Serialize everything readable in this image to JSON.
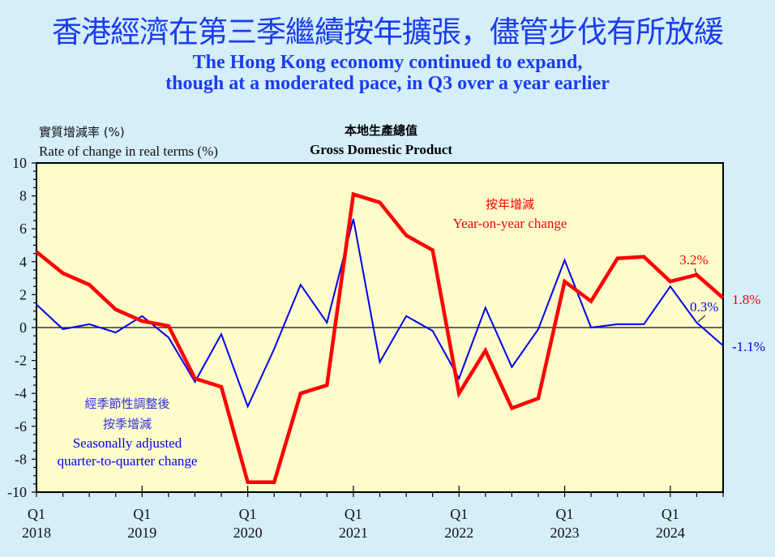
{
  "header": {
    "title_zh": "香港經濟在第三季繼續按年擴張，儘管步伐有所放緩",
    "title_en_line1": "The Hong Kong economy continued to expand,",
    "title_en_line2": "though at a moderated pace, in Q3 over a year earlier"
  },
  "axis": {
    "ylabel_zh": "實質增減率 (%)",
    "ylabel_en": "Rate of change in real terms (%)"
  },
  "chart_title": {
    "zh": "本地生產總值",
    "en": "Gross Domestic Product"
  },
  "legend": {
    "yoy_zh": "按年增減",
    "yoy_en": "Year-on-year change",
    "qoq_zh_1": "經季節性調整後",
    "qoq_zh_2": "按季增減",
    "qoq_en_1": "Seasonally adjusted",
    "qoq_en_2": "quarter-to-quarter change"
  },
  "annotations": {
    "yoy_q2_2024": "3.2%",
    "yoy_q3_2024": "1.8%",
    "qoq_q2_2024": "0.3%",
    "qoq_q3_2024": "-1.1%"
  },
  "colors": {
    "background": "#d4eefa",
    "plot_bg": "#fffccc",
    "yoy": "#ff0000",
    "qoq": "#0000ee",
    "title": "#1a3cf0"
  },
  "chart_data": {
    "type": "line",
    "title": "Gross Domestic Product",
    "title_zh": "本地生產總值",
    "ylabel": "Rate of change in real terms (%)",
    "xlabel": "",
    "ylim": [
      -10,
      10
    ],
    "yticks": [
      10,
      8,
      6,
      4,
      2,
      0,
      -2,
      -4,
      -6,
      -8,
      -10
    ],
    "xtick_labels": [
      {
        "q": "Q1",
        "year": "2018"
      },
      {
        "q": "Q1",
        "year": "2019"
      },
      {
        "q": "Q1",
        "year": "2020"
      },
      {
        "q": "Q1",
        "year": "2021"
      },
      {
        "q": "Q1",
        "year": "2022"
      },
      {
        "q": "Q1",
        "year": "2023"
      },
      {
        "q": "Q1",
        "year": "2024"
      }
    ],
    "categories": [
      "2018Q1",
      "2018Q2",
      "2018Q3",
      "2018Q4",
      "2019Q1",
      "2019Q2",
      "2019Q3",
      "2019Q4",
      "2020Q1",
      "2020Q2",
      "2020Q3",
      "2020Q4",
      "2021Q1",
      "2021Q2",
      "2021Q3",
      "2021Q4",
      "2022Q1",
      "2022Q2",
      "2022Q3",
      "2022Q4",
      "2023Q1",
      "2023Q2",
      "2023Q3",
      "2023Q4",
      "2024Q1",
      "2024Q2",
      "2024Q3"
    ],
    "series": [
      {
        "name": "Year-on-year change",
        "name_zh": "按年增減",
        "color": "#ff0000",
        "values": [
          4.6,
          3.3,
          2.6,
          1.1,
          0.4,
          0.1,
          -3.1,
          -3.6,
          -9.4,
          -9.4,
          -4.0,
          -3.5,
          8.1,
          7.6,
          5.6,
          4.7,
          -4.0,
          -1.4,
          -4.9,
          -4.3,
          2.8,
          1.6,
          4.2,
          4.3,
          2.8,
          3.2,
          1.8
        ]
      },
      {
        "name": "Seasonally adjusted quarter-to-quarter change",
        "name_zh": "經季節性調整後按季增減",
        "color": "#0000ee",
        "values": [
          1.4,
          -0.1,
          0.2,
          -0.3,
          0.7,
          -0.6,
          -3.3,
          -0.4,
          -4.8,
          -1.3,
          2.6,
          0.3,
          6.6,
          -2.1,
          0.7,
          -0.2,
          -3.1,
          1.2,
          -2.4,
          -0.1,
          4.1,
          0.0,
          0.2,
          0.2,
          2.5,
          0.3,
          -1.1
        ]
      }
    ],
    "grid": false,
    "zero_line": true,
    "legend_position": "inline annotations"
  }
}
